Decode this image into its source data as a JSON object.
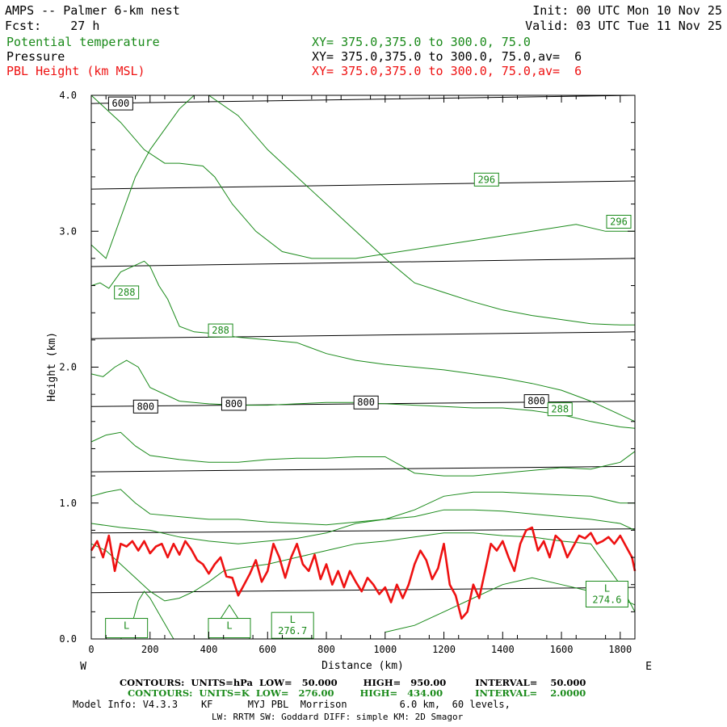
{
  "header": {
    "title": "AMPS -- Palmer 6-km nest",
    "fcst": "Fcst:    27 h",
    "init": "Init: 00 UTC Mon 10 Nov 25",
    "valid": "Valid: 03 UTC Tue 11 Nov 25",
    "var1_name": "Potential temperature",
    "var1_xy": "XY= 375.0,375.0 to 300.0, 75.0",
    "var2_name": "Pressure",
    "var2_xy": "XY= 375.0,375.0 to 300.0, 75.0,av=  6",
    "var3_name": "PBL Height (km MSL)",
    "var3_xy": "XY= 375.0,375.0 to 300.0, 75.0,av=  6"
  },
  "footer": {
    "line1": "CONTOURS:  UNITS=hPa  LOW=   50.000        HIGH=   950.00         INTERVAL=    50.000",
    "line2": "CONTOURS:  UNITS=K  LOW=   276.00        HIGH=   434.00          INTERVAL=    2.0000",
    "line3": "Model Info: V4.3.3    KF      MYJ PBL  Morrison         6.0 km,  60 levels,",
    "line4": "LW: RRTM SW: Goddard DIFF: simple KM: 2D Smagor"
  },
  "colors": {
    "potential_temperature": "#1a8a1a",
    "pressure": "#000000",
    "pbl": "#ee1111"
  },
  "chart_data": {
    "type": "line",
    "xlabel": "Distance (km)",
    "ylabel": "Height (km)",
    "xlim": [
      0,
      1850
    ],
    "ylim": [
      0,
      4.0
    ],
    "xticks": [
      "0",
      "200",
      "400",
      "600",
      "800",
      "1000",
      "1200",
      "1400",
      "1600",
      "1800"
    ],
    "xtick_values": [
      0,
      200,
      400,
      600,
      800,
      1000,
      1200,
      1400,
      1600,
      1800
    ],
    "yticks": [
      "0.0",
      "1.0",
      "2.0",
      "3.0",
      "4.0"
    ],
    "ytick_values": [
      0,
      1,
      2,
      3,
      4
    ],
    "west_label": "W",
    "east_label": "E",
    "pressure_lines": [
      {
        "name": "600",
        "x": [
          0,
          1850
        ],
        "y": [
          3.94,
          4.0
        ]
      },
      {
        "name": "",
        "x": [
          0,
          1850
        ],
        "y": [
          3.31,
          3.37
        ]
      },
      {
        "name": "",
        "x": [
          0,
          1850
        ],
        "y": [
          2.74,
          2.8
        ]
      },
      {
        "name": "",
        "x": [
          0,
          1850
        ],
        "y": [
          2.21,
          2.26
        ]
      },
      {
        "name": "800",
        "x": [
          0,
          1850
        ],
        "y": [
          1.71,
          1.75
        ]
      },
      {
        "name": "",
        "x": [
          0,
          1850
        ],
        "y": [
          1.23,
          1.27
        ]
      },
      {
        "name": "",
        "x": [
          0,
          1850
        ],
        "y": [
          0.78,
          0.81
        ]
      },
      {
        "name": "",
        "x": [
          0,
          1850
        ],
        "y": [
          0.34,
          0.38
        ]
      }
    ],
    "pressure_labels": [
      {
        "text": "600",
        "x": 100,
        "y": 3.94
      },
      {
        "text": "800",
        "x": 185,
        "y": 1.71
      },
      {
        "text": "800",
        "x": 485,
        "y": 1.73
      },
      {
        "text": "800",
        "x": 935,
        "y": 1.74
      },
      {
        "text": "800",
        "x": 1515,
        "y": 1.75
      }
    ],
    "theta_lines": [
      {
        "x": [
          0,
          100,
          180,
          250,
          300,
          380,
          420,
          480,
          560,
          650,
          750,
          900,
          1050,
          1200,
          1350,
          1500,
          1650,
          1750,
          1850
        ],
        "y": [
          4.0,
          3.8,
          3.6,
          3.5,
          3.5,
          3.48,
          3.4,
          3.2,
          3.0,
          2.85,
          2.8,
          2.8,
          2.85,
          2.9,
          2.95,
          3.0,
          3.05,
          3.0,
          3.0
        ]
      },
      {
        "x": [
          0,
          50,
          100,
          150,
          200,
          300,
          350,
          400,
          500,
          600,
          700,
          800,
          900,
          1000,
          1100,
          1200,
          1300,
          1400,
          1500,
          1600,
          1700,
          1800,
          1850
        ],
        "y": [
          2.9,
          2.8,
          3.1,
          3.4,
          3.6,
          3.9,
          4.0,
          4.0,
          3.85,
          3.6,
          3.4,
          3.2,
          3.0,
          2.8,
          2.62,
          2.55,
          2.48,
          2.42,
          2.38,
          2.35,
          2.32,
          2.31,
          2.31
        ]
      },
      {
        "x": [
          0,
          30,
          60,
          100,
          150,
          180,
          200,
          230,
          260,
          300,
          350,
          400,
          500,
          600,
          700,
          800,
          900,
          1000,
          1100,
          1200,
          1300,
          1400,
          1500,
          1600,
          1700,
          1800,
          1850
        ],
        "y": [
          2.6,
          2.62,
          2.58,
          2.7,
          2.75,
          2.78,
          2.74,
          2.6,
          2.5,
          2.3,
          2.26,
          2.25,
          2.22,
          2.2,
          2.18,
          2.1,
          2.05,
          2.02,
          2.0,
          1.98,
          1.95,
          1.92,
          1.88,
          1.83,
          1.75,
          1.65,
          1.6
        ]
      },
      {
        "x": [
          0,
          40,
          80,
          120,
          160,
          200,
          300,
          400,
          500,
          600,
          700,
          800,
          900,
          1000,
          1100,
          1200,
          1300,
          1400,
          1500,
          1600,
          1700,
          1800,
          1850
        ],
        "y": [
          1.95,
          1.93,
          2.0,
          2.05,
          2.0,
          1.85,
          1.75,
          1.73,
          1.72,
          1.72,
          1.73,
          1.74,
          1.74,
          1.73,
          1.72,
          1.71,
          1.7,
          1.7,
          1.68,
          1.65,
          1.6,
          1.56,
          1.55
        ]
      },
      {
        "x": [
          0,
          50,
          100,
          150,
          200,
          300,
          400,
          500,
          600,
          700,
          800,
          900,
          1000,
          1100,
          1200,
          1300,
          1400,
          1500,
          1600,
          1700,
          1800,
          1850
        ],
        "y": [
          1.45,
          1.5,
          1.52,
          1.42,
          1.35,
          1.32,
          1.3,
          1.3,
          1.32,
          1.33,
          1.33,
          1.34,
          1.34,
          1.22,
          1.2,
          1.2,
          1.22,
          1.24,
          1.26,
          1.25,
          1.3,
          1.38
        ]
      },
      {
        "x": [
          0,
          50,
          100,
          150,
          200,
          300,
          400,
          500,
          600,
          700,
          800,
          900,
          1000,
          1100,
          1200,
          1300,
          1400,
          1500,
          1600,
          1700,
          1800,
          1850
        ],
        "y": [
          1.05,
          1.08,
          1.1,
          1.0,
          0.92,
          0.9,
          0.88,
          0.88,
          0.86,
          0.85,
          0.84,
          0.86,
          0.88,
          0.95,
          1.05,
          1.08,
          1.08,
          1.07,
          1.06,
          1.05,
          1.0,
          1.0
        ]
      },
      {
        "x": [
          0,
          100,
          200,
          300,
          400,
          500,
          600,
          700,
          800,
          900,
          1000,
          1100,
          1200,
          1300,
          1400,
          1500,
          1600,
          1700,
          1800,
          1850
        ],
        "y": [
          0.85,
          0.82,
          0.8,
          0.75,
          0.72,
          0.7,
          0.72,
          0.74,
          0.78,
          0.85,
          0.88,
          0.9,
          0.95,
          0.95,
          0.94,
          0.92,
          0.9,
          0.88,
          0.85,
          0.8
        ]
      },
      {
        "x": [
          0,
          50,
          100,
          150,
          200,
          250,
          300,
          350,
          400,
          450,
          500,
          600,
          700,
          800,
          900,
          1000,
          1100,
          1200,
          1300,
          1400,
          1500,
          1600,
          1700,
          1800,
          1850
        ],
        "y": [
          0.7,
          0.65,
          0.55,
          0.45,
          0.35,
          0.28,
          0.3,
          0.35,
          0.42,
          0.5,
          0.52,
          0.55,
          0.6,
          0.65,
          0.7,
          0.72,
          0.75,
          0.78,
          0.78,
          0.76,
          0.75,
          0.72,
          0.7,
          0.4,
          0.2
        ]
      },
      {
        "x": [
          100,
          140,
          160,
          180,
          200,
          240,
          280
        ],
        "y": [
          0.0,
          0.12,
          0.28,
          0.35,
          0.3,
          0.15,
          0.0
        ]
      },
      {
        "x": [
          400,
          440,
          470,
          500,
          540
        ],
        "y": [
          0.0,
          0.15,
          0.25,
          0.15,
          0.0
        ]
      },
      {
        "x": [
          1000,
          1100,
          1200,
          1300,
          1400,
          1500,
          1600,
          1700,
          1800,
          1850
        ],
        "y": [
          0.05,
          0.1,
          0.2,
          0.3,
          0.4,
          0.45,
          0.4,
          0.35,
          0.3,
          0.25
        ]
      }
    ],
    "theta_labels": [
      {
        "text": "296",
        "x": 1345,
        "y": 3.38
      },
      {
        "text": "296",
        "x": 1795,
        "y": 3.07
      },
      {
        "text": "288",
        "x": 120,
        "y": 2.55
      },
      {
        "text": "288",
        "x": 440,
        "y": 2.27
      },
      {
        "text": "288",
        "x": 1595,
        "y": 1.69
      }
    ],
    "theta_lows": [
      {
        "text": "L",
        "sub": "",
        "x": 120,
        "y": 0.08
      },
      {
        "text": "L",
        "sub": "",
        "x": 470,
        "y": 0.08
      },
      {
        "text": "L",
        "sub": "276.7",
        "x": 685,
        "y": 0.1
      },
      {
        "text": "L",
        "sub": "274.6",
        "x": 1755,
        "y": 0.33
      }
    ],
    "pbl_series": {
      "name": "PBL Height (km MSL)",
      "x": [
        0,
        20,
        40,
        60,
        80,
        100,
        120,
        140,
        160,
        180,
        200,
        220,
        240,
        260,
        280,
        300,
        320,
        340,
        360,
        380,
        400,
        420,
        440,
        460,
        480,
        500,
        520,
        540,
        560,
        580,
        600,
        620,
        640,
        660,
        680,
        700,
        720,
        740,
        760,
        780,
        800,
        820,
        840,
        860,
        880,
        900,
        920,
        940,
        960,
        980,
        1000,
        1020,
        1040,
        1060,
        1080,
        1100,
        1120,
        1140,
        1160,
        1180,
        1200,
        1220,
        1240,
        1260,
        1280,
        1300,
        1320,
        1340,
        1360,
        1380,
        1400,
        1420,
        1440,
        1460,
        1480,
        1500,
        1520,
        1540,
        1560,
        1580,
        1600,
        1620,
        1640,
        1660,
        1680,
        1700,
        1720,
        1740,
        1760,
        1780,
        1800,
        1820,
        1840,
        1850
      ],
      "y": [
        0.65,
        0.72,
        0.6,
        0.76,
        0.5,
        0.7,
        0.68,
        0.72,
        0.65,
        0.72,
        0.63,
        0.68,
        0.7,
        0.6,
        0.7,
        0.62,
        0.72,
        0.66,
        0.58,
        0.55,
        0.48,
        0.55,
        0.6,
        0.46,
        0.45,
        0.32,
        0.4,
        0.48,
        0.58,
        0.42,
        0.5,
        0.7,
        0.6,
        0.45,
        0.6,
        0.7,
        0.55,
        0.5,
        0.62,
        0.44,
        0.55,
        0.4,
        0.5,
        0.38,
        0.5,
        0.42,
        0.35,
        0.45,
        0.4,
        0.33,
        0.38,
        0.27,
        0.4,
        0.3,
        0.4,
        0.55,
        0.65,
        0.58,
        0.44,
        0.52,
        0.7,
        0.4,
        0.32,
        0.15,
        0.2,
        0.4,
        0.3,
        0.5,
        0.7,
        0.65,
        0.72,
        0.6,
        0.5,
        0.7,
        0.8,
        0.82,
        0.65,
        0.72,
        0.6,
        0.76,
        0.72,
        0.6,
        0.68,
        0.76,
        0.74,
        0.78,
        0.7,
        0.72,
        0.75,
        0.7,
        0.76,
        0.68,
        0.6,
        0.5
      ]
    }
  }
}
